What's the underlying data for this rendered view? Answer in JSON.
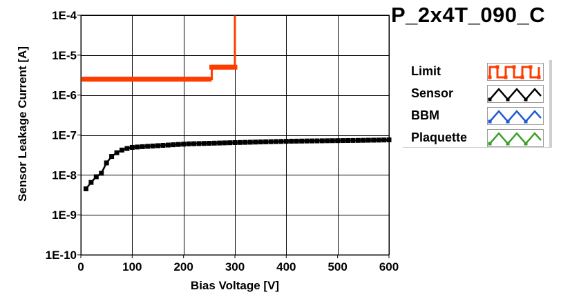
{
  "header": {
    "title": "P_2x4T_090_C"
  },
  "legend": {
    "items": [
      {
        "label": "Limit",
        "color": "#ff3c00",
        "pattern": "square-wave"
      },
      {
        "label": "Sensor",
        "color": "#000000",
        "pattern": "triangle-wave"
      },
      {
        "label": "BBM",
        "color": "#1e5ad2",
        "pattern": "triangle-wave"
      },
      {
        "label": "Plaquette",
        "color": "#3ca028",
        "pattern": "triangle-wave"
      }
    ]
  },
  "chart_data": {
    "type": "line",
    "title": "P_2x4T_090_C",
    "xlabel": "Bias Voltage [V]",
    "ylabel": "Sensor Leakage Current [A]",
    "xlim": [
      0,
      600
    ],
    "ylim": [
      1e-10,
      0.0001
    ],
    "yscale": "log",
    "grid": true,
    "legend_position": "right",
    "x_ticks": [
      0,
      100,
      200,
      300,
      400,
      500,
      600
    ],
    "x_tick_labels": [
      "0",
      "100",
      "200",
      "300",
      "400",
      "500",
      "600"
    ],
    "y_ticks": [
      0.0001,
      1e-05,
      1e-06,
      1e-07,
      1e-08,
      1e-09,
      1e-10
    ],
    "y_tick_labels": [
      "1E-4",
      "1E-5",
      "1E-6",
      "1E-7",
      "1E-8",
      "1E-9",
      "1E-10"
    ],
    "series": [
      {
        "name": "Limit",
        "color": "#ff3c00",
        "step": true,
        "x": [
          5,
          10,
          15,
          20,
          25,
          30,
          35,
          40,
          45,
          50,
          55,
          60,
          65,
          70,
          75,
          80,
          85,
          90,
          95,
          100,
          105,
          110,
          115,
          120,
          125,
          130,
          135,
          140,
          145,
          150,
          155,
          160,
          165,
          170,
          175,
          180,
          185,
          190,
          195,
          200,
          205,
          210,
          215,
          220,
          225,
          230,
          235,
          240,
          245,
          250,
          255,
          260,
          265,
          270,
          275,
          280,
          285,
          290,
          295,
          300,
          300
        ],
        "y": [
          2.5e-06,
          2.5e-06,
          2.5e-06,
          2.5e-06,
          2.5e-06,
          2.5e-06,
          2.5e-06,
          2.5e-06,
          2.5e-06,
          2.5e-06,
          2.5e-06,
          2.5e-06,
          2.5e-06,
          2.5e-06,
          2.5e-06,
          2.5e-06,
          2.5e-06,
          2.5e-06,
          2.5e-06,
          2.5e-06,
          2.5e-06,
          2.5e-06,
          2.5e-06,
          2.5e-06,
          2.5e-06,
          2.5e-06,
          2.5e-06,
          2.5e-06,
          2.5e-06,
          2.5e-06,
          2.5e-06,
          2.5e-06,
          2.5e-06,
          2.5e-06,
          2.5e-06,
          2.5e-06,
          2.5e-06,
          2.5e-06,
          2.5e-06,
          2.5e-06,
          2.5e-06,
          2.5e-06,
          2.5e-06,
          2.5e-06,
          2.5e-06,
          2.5e-06,
          2.5e-06,
          2.5e-06,
          2.5e-06,
          2.5e-06,
          5e-06,
          5e-06,
          5e-06,
          5e-06,
          5e-06,
          5e-06,
          5e-06,
          5e-06,
          5e-06,
          5e-06,
          0.0001
        ]
      },
      {
        "name": "Sensor",
        "color": "#000000",
        "step": false,
        "x": [
          10,
          20,
          30,
          40,
          50,
          60,
          70,
          80,
          90,
          100,
          110,
          120,
          130,
          140,
          150,
          160,
          170,
          180,
          190,
          200,
          210,
          220,
          230,
          240,
          250,
          260,
          270,
          280,
          290,
          300,
          310,
          320,
          330,
          340,
          350,
          360,
          370,
          380,
          390,
          400,
          410,
          420,
          430,
          440,
          450,
          460,
          470,
          480,
          490,
          500,
          510,
          520,
          530,
          540,
          550,
          560,
          570,
          580,
          590,
          600
        ],
        "y": [
          4.5e-09,
          6.5e-09,
          9e-09,
          1.1e-08,
          2e-08,
          2.9e-08,
          3.6e-08,
          4.2e-08,
          4.6e-08,
          4.9e-08,
          5e-08,
          5.1e-08,
          5.2e-08,
          5.3e-08,
          5.4e-08,
          5.5e-08,
          5.6e-08,
          5.7e-08,
          5.8e-08,
          5.9e-08,
          6e-08,
          6.05e-08,
          6.1e-08,
          6.15e-08,
          6.2e-08,
          6.25e-08,
          6.3e-08,
          6.35e-08,
          6.4e-08,
          6.45e-08,
          6.5e-08,
          6.55e-08,
          6.6e-08,
          6.65e-08,
          6.7e-08,
          6.75e-08,
          6.8e-08,
          6.85e-08,
          6.9e-08,
          6.95e-08,
          7e-08,
          7.02e-08,
          7.05e-08,
          7.08e-08,
          7.1e-08,
          7.12e-08,
          7.15e-08,
          7.18e-08,
          7.2e-08,
          7.22e-08,
          7.25e-08,
          7.28e-08,
          7.3e-08,
          7.33e-08,
          7.36e-08,
          7.4e-08,
          7.43e-08,
          7.46e-08,
          7.5e-08,
          7.55e-08
        ]
      }
    ]
  }
}
